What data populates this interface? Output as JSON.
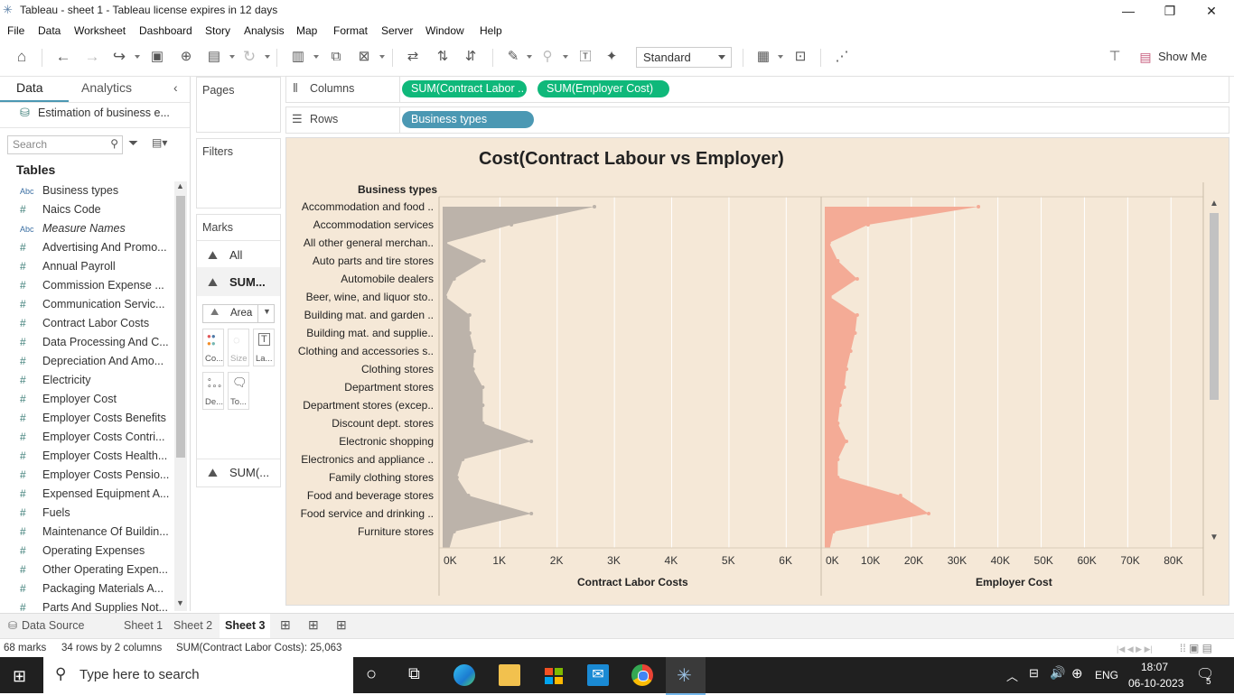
{
  "window": {
    "title": "Tableau - sheet 1 - Tableau license expires in 12 days",
    "minimize": "—",
    "restore": "❐",
    "close": "✕"
  },
  "menu": [
    "File",
    "Data",
    "Worksheet",
    "Dashboard",
    "Story",
    "Analysis",
    "Map",
    "Format",
    "Server",
    "Window",
    "Help"
  ],
  "toolbar": {
    "fit_select": "Standard",
    "show_me": "Show Me"
  },
  "data_pane": {
    "tab_data": "Data",
    "tab_analytics": "Analytics",
    "datasource": "Estimation of business e...",
    "search_placeholder": "Search",
    "tables_heading": "Tables",
    "fields": [
      {
        "type": "Abc",
        "name": "Business types"
      },
      {
        "type": "#",
        "name": "Naics Code"
      },
      {
        "type": "Abc",
        "name": "Measure Names"
      },
      {
        "type": "#",
        "name": "Advertising And Promo..."
      },
      {
        "type": "#",
        "name": "Annual Payroll"
      },
      {
        "type": "#",
        "name": "Commission Expense ..."
      },
      {
        "type": "#",
        "name": "Communication Servic..."
      },
      {
        "type": "#",
        "name": "Contract Labor Costs"
      },
      {
        "type": "#",
        "name": "Data Processing And C..."
      },
      {
        "type": "#",
        "name": "Depreciation And Amo..."
      },
      {
        "type": "#",
        "name": "Electricity"
      },
      {
        "type": "#",
        "name": "Employer Cost"
      },
      {
        "type": "#",
        "name": "Employer Costs Benefits"
      },
      {
        "type": "#",
        "name": "Employer Costs Contri..."
      },
      {
        "type": "#",
        "name": "Employer Costs Health..."
      },
      {
        "type": "#",
        "name": "Employer Costs Pensio..."
      },
      {
        "type": "#",
        "name": "Expensed Equipment A..."
      },
      {
        "type": "#",
        "name": "Fuels"
      },
      {
        "type": "#",
        "name": "Maintenance Of Buildin..."
      },
      {
        "type": "#",
        "name": "Operating Expenses"
      },
      {
        "type": "#",
        "name": "Other Operating Expen..."
      },
      {
        "type": "#",
        "name": "Packaging Materials A..."
      },
      {
        "type": "#",
        "name": "Parts And Supplies Not..."
      }
    ]
  },
  "cards": {
    "pages": "Pages",
    "filters": "Filters",
    "marks": "Marks",
    "marks_all": "All",
    "marks_sum": "SUM...",
    "mark_type": "Area",
    "btn_color": "Co...",
    "btn_size": "Size",
    "btn_label": "La...",
    "btn_detail": "De...",
    "btn_tooltip": "To...",
    "marks_sum2": "SUM(..."
  },
  "shelves": {
    "columns_label": "Columns",
    "rows_label": "Rows",
    "columns_pills": [
      "SUM(Contract Labor ..",
      "SUM(Employer Cost)"
    ],
    "rows_pills": [
      "Business types"
    ]
  },
  "colors": {
    "measure_pill": "#0fb87a",
    "dimension_pill": "#4b98b3",
    "contract_area": "#bcb3aa",
    "employer_area": "#f4ab96",
    "viz_bg": "#f5e8d7"
  },
  "chart_data": {
    "type": "area",
    "title": "Cost(Contract Labour vs Employer)",
    "row_header": "Business types",
    "categories": [
      "Accommodation and food ..",
      "Accommodation services",
      "All other general merchan..",
      "Auto parts and tire stores",
      "Automobile dealers",
      "Beer, wine, and liquor sto..",
      "Building mat. and garden ..",
      "Building mat. and supplie..",
      "Clothing and accessories s..",
      "Clothing stores",
      "Department stores",
      "Department stores (excep..",
      "Discount dept. stores",
      "Electronic shopping",
      "Electronics and appliance ..",
      "Family clothing stores",
      "Food and beverage stores",
      "Food service and drinking ..",
      "Furniture stores"
    ],
    "series": [
      {
        "name": "Contract Labor Costs",
        "values": [
          2650,
          1200,
          50,
          720,
          200,
          50,
          470,
          470,
          550,
          530,
          700,
          700,
          700,
          1550,
          350,
          250,
          450,
          1550,
          200
        ],
        "xlim": [
          0,
          6500
        ],
        "ticks": [
          "0K",
          "1K",
          "2K",
          "3K",
          "4K",
          "5K",
          "6K"
        ]
      },
      {
        "name": "Employer Cost",
        "values": [
          35500,
          10000,
          1000,
          3000,
          7500,
          1200,
          7500,
          7000,
          6000,
          5000,
          4500,
          3500,
          3000,
          5000,
          3000,
          3000,
          17500,
          24000,
          2000
        ],
        "xlim": [
          0,
          86000
        ],
        "ticks": [
          "0K",
          "10K",
          "20K",
          "30K",
          "40K",
          "50K",
          "60K",
          "70K",
          "80K"
        ]
      }
    ]
  },
  "sheet_tabs": {
    "datasource": "Data Source",
    "sheets": [
      "Sheet 1",
      "Sheet 2",
      "Sheet 3"
    ]
  },
  "status": {
    "marks": "68 marks",
    "dims": "34 rows by 2 columns",
    "sum": "SUM(Contract Labor Costs): 25,063"
  },
  "taskbar": {
    "search_placeholder": "Type here to search",
    "time": "18:07",
    "date": "06-10-2023",
    "lang": "ENG",
    "notif": "5"
  }
}
